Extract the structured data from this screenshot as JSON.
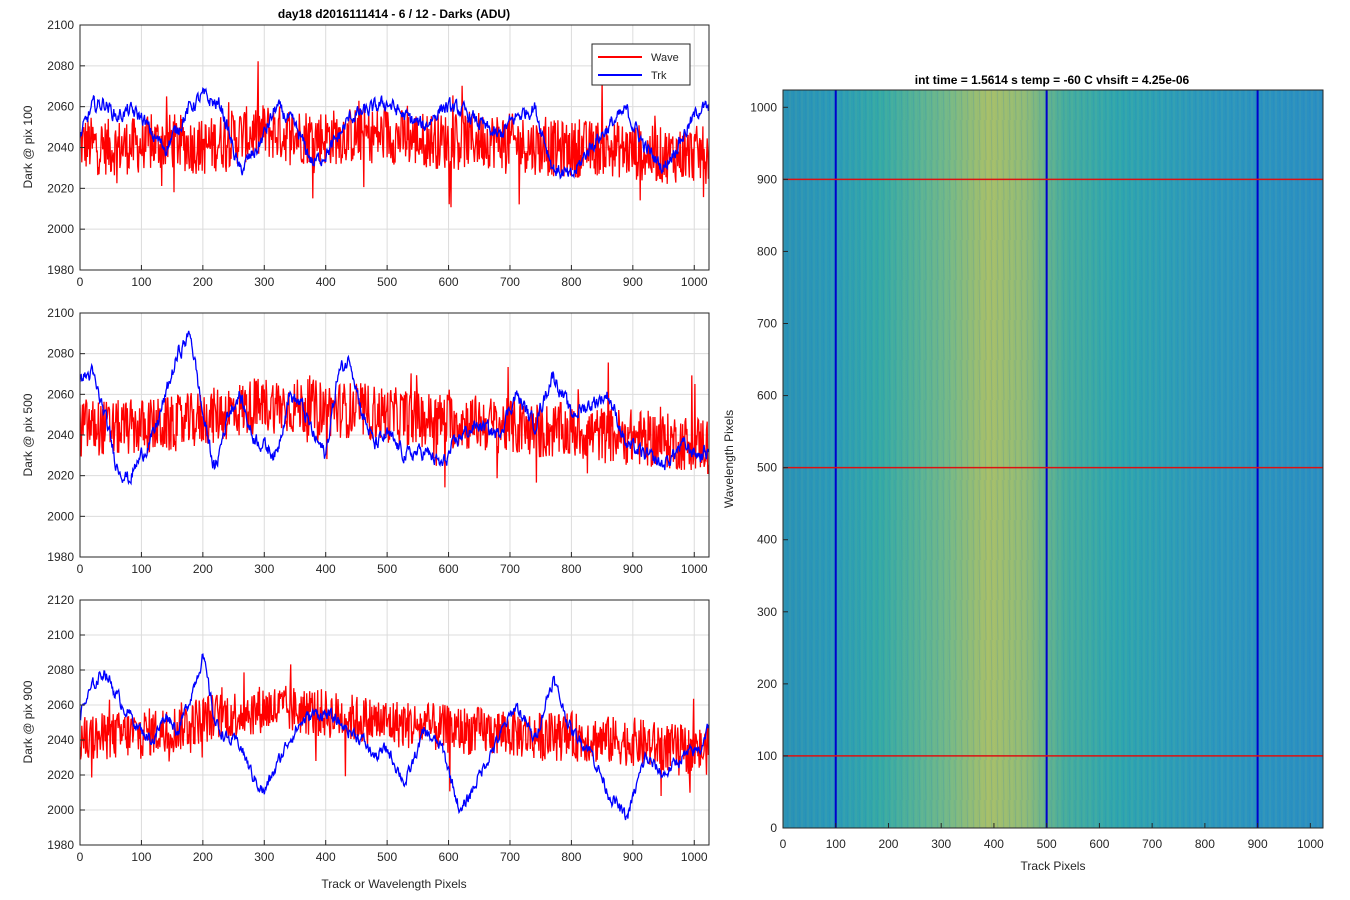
{
  "figure": {
    "left_title": "day18 d2016111414 - 6 / 12 - Darks (ADU)",
    "right_title": "int time = 1.5614 s    temp = -60 C    vhsift = 4.25e-06"
  },
  "colors": {
    "wave": "#ff0000",
    "trk": "#0000ff",
    "grid": "#dcdcdc",
    "image_low": "#1f6fc4",
    "image_mid": "#2fa9a8",
    "image_high": "#c9c24a"
  },
  "chart_data": [
    {
      "type": "line",
      "ylabel": "Dark @ pix 100",
      "xlabel": "",
      "xlim": [
        0,
        1024
      ],
      "ylim": [
        1980,
        2100
      ],
      "x_ticks": [
        0,
        100,
        200,
        300,
        400,
        500,
        600,
        700,
        800,
        900,
        1000
      ],
      "y_ticks": [
        1980,
        2000,
        2020,
        2040,
        2060,
        2080,
        2100
      ],
      "grid": true,
      "legend": {
        "position": "top-right",
        "entries": [
          "Wave",
          "Trk"
        ]
      },
      "series": [
        {
          "name": "Wave",
          "x": [
            0,
            50,
            100,
            150,
            200,
            250,
            300,
            350,
            400,
            450,
            500,
            550,
            600,
            650,
            700,
            750,
            800,
            850,
            900,
            950,
            1000,
            1024
          ],
          "values": [
            2042,
            2040,
            2041,
            2043,
            2040,
            2045,
            2048,
            2046,
            2045,
            2046,
            2046,
            2044,
            2043,
            2044,
            2043,
            2040,
            2039,
            2040,
            2038,
            2036,
            2037,
            2036
          ]
        },
        {
          "name": "Trk",
          "x": [
            0,
            20,
            40,
            60,
            80,
            100,
            120,
            140,
            160,
            180,
            200,
            230,
            260,
            290,
            320,
            350,
            380,
            410,
            440,
            470,
            500,
            530,
            560,
            590,
            620,
            650,
            680,
            710,
            740,
            770,
            800,
            830,
            860,
            890,
            920,
            950,
            980,
            1010,
            1024
          ],
          "values": [
            2045,
            2060,
            2062,
            2055,
            2058,
            2055,
            2045,
            2040,
            2050,
            2060,
            2065,
            2060,
            2028,
            2040,
            2060,
            2050,
            2032,
            2040,
            2055,
            2058,
            2062,
            2055,
            2050,
            2060,
            2058,
            2052,
            2045,
            2055,
            2060,
            2030,
            2025,
            2040,
            2050,
            2058,
            2040,
            2030,
            2045,
            2060,
            2058
          ]
        }
      ]
    },
    {
      "type": "line",
      "ylabel": "Dark @ pix 500",
      "xlabel": "",
      "xlim": [
        0,
        1024
      ],
      "ylim": [
        1980,
        2100
      ],
      "x_ticks": [
        0,
        100,
        200,
        300,
        400,
        500,
        600,
        700,
        800,
        900,
        1000
      ],
      "y_ticks": [
        1980,
        2000,
        2020,
        2040,
        2060,
        2080,
        2100
      ],
      "grid": true,
      "series": [
        {
          "name": "Wave",
          "x": [
            0,
            50,
            100,
            150,
            200,
            250,
            300,
            350,
            400,
            450,
            500,
            550,
            600,
            650,
            700,
            750,
            800,
            850,
            900,
            950,
            1000,
            1024
          ],
          "values": [
            2045,
            2043,
            2044,
            2045,
            2048,
            2052,
            2055,
            2054,
            2053,
            2052,
            2050,
            2048,
            2047,
            2046,
            2044,
            2042,
            2042,
            2040,
            2039,
            2037,
            2036,
            2036
          ]
        },
        {
          "name": "Trk",
          "x": [
            0,
            20,
            40,
            60,
            80,
            100,
            120,
            140,
            160,
            180,
            200,
            220,
            240,
            260,
            280,
            300,
            320,
            340,
            360,
            380,
            400,
            420,
            440,
            460,
            480,
            500,
            530,
            560,
            590,
            620,
            650,
            680,
            710,
            740,
            770,
            800,
            830,
            860,
            890,
            920,
            950,
            980,
            1010,
            1024
          ],
          "values": [
            2068,
            2070,
            2050,
            2025,
            2018,
            2030,
            2040,
            2060,
            2080,
            2090,
            2050,
            2022,
            2050,
            2060,
            2040,
            2035,
            2030,
            2060,
            2055,
            2040,
            2030,
            2070,
            2078,
            2050,
            2035,
            2040,
            2030,
            2032,
            2025,
            2040,
            2045,
            2040,
            2060,
            2045,
            2070,
            2050,
            2055,
            2060,
            2035,
            2030,
            2025,
            2035,
            2030,
            2032
          ]
        }
      ]
    },
    {
      "type": "line",
      "ylabel": "Dark @ pix 900",
      "xlabel": "Track or Wavelength Pixels",
      "xlim": [
        0,
        1024
      ],
      "ylim": [
        1980,
        2120
      ],
      "x_ticks": [
        0,
        100,
        200,
        300,
        400,
        500,
        600,
        700,
        800,
        900,
        1000
      ],
      "y_ticks": [
        1980,
        2000,
        2020,
        2040,
        2060,
        2080,
        2100,
        2120
      ],
      "grid": true,
      "series": [
        {
          "name": "Wave",
          "x": [
            0,
            50,
            100,
            150,
            200,
            250,
            300,
            350,
            400,
            450,
            500,
            550,
            600,
            650,
            700,
            750,
            800,
            850,
            900,
            950,
            1000,
            1024
          ],
          "values": [
            2040,
            2042,
            2044,
            2046,
            2052,
            2055,
            2058,
            2057,
            2055,
            2052,
            2050,
            2048,
            2046,
            2045,
            2044,
            2042,
            2042,
            2040,
            2039,
            2036,
            2034,
            2034
          ]
        },
        {
          "name": "Trk",
          "x": [
            0,
            20,
            40,
            60,
            80,
            100,
            120,
            140,
            160,
            180,
            200,
            220,
            240,
            260,
            280,
            300,
            320,
            340,
            360,
            380,
            400,
            420,
            440,
            460,
            480,
            500,
            530,
            560,
            590,
            620,
            650,
            680,
            710,
            740,
            770,
            800,
            830,
            860,
            890,
            920,
            950,
            980,
            1010,
            1024
          ],
          "values": [
            2055,
            2070,
            2080,
            2065,
            2055,
            2045,
            2040,
            2055,
            2045,
            2065,
            2088,
            2050,
            2040,
            2038,
            2020,
            2010,
            2025,
            2040,
            2050,
            2055,
            2055,
            2050,
            2045,
            2040,
            2030,
            2035,
            2015,
            2045,
            2035,
            1998,
            2020,
            2040,
            2060,
            2040,
            2075,
            2045,
            2035,
            2010,
            1995,
            2030,
            2020,
            2030,
            2035,
            2050
          ]
        }
      ]
    },
    {
      "type": "heatmap",
      "xlabel": "Track Pixels",
      "ylabel": "Wavelength Pixels",
      "xlim": [
        0,
        1024
      ],
      "ylim": [
        0,
        1024
      ],
      "x_ticks": [
        0,
        100,
        200,
        300,
        400,
        500,
        600,
        700,
        800,
        900,
        1000
      ],
      "y_ticks": [
        0,
        100,
        200,
        300,
        400,
        500,
        600,
        700,
        800,
        900,
        1000
      ],
      "vertical_lines": [
        100,
        500,
        900
      ],
      "horizontal_lines": [
        100,
        500,
        900
      ],
      "description_values": {
        "bright_band_track_center": 380,
        "bright_band_track_width": 180
      }
    }
  ]
}
